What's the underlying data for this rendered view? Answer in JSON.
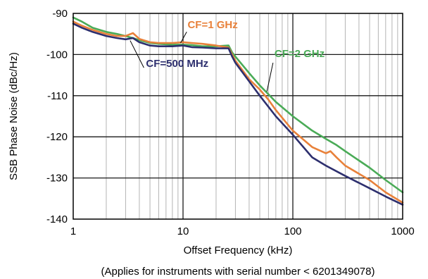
{
  "chart_data": {
    "type": "line",
    "title": "",
    "xlabel": "Offset Frequency (kHz)",
    "ylabel": "SSB Phase Noise (dBc/Hz)",
    "xscale": "log",
    "xlim": [
      1,
      1000
    ],
    "ylim": [
      -140,
      -90
    ],
    "grid": true,
    "x_ticks": [
      "1",
      "10",
      "100",
      "1000"
    ],
    "y_ticks": [
      "-90",
      "-100",
      "-110",
      "-120",
      "-130",
      "-140"
    ],
    "note": "(Applies for instruments with serial number < 6201349078)",
    "series": [
      {
        "name": "CF=500 MHz",
        "color": "#2d2f6e",
        "x": [
          1,
          1.2,
          1.5,
          2,
          2.5,
          3,
          3.5,
          4,
          5,
          6,
          7,
          8,
          10,
          12,
          15,
          20,
          26,
          28,
          30,
          40,
          50,
          70,
          100,
          150,
          200,
          300,
          500,
          700,
          1000
        ],
        "y": [
          -92.5,
          -93.5,
          -94.5,
          -95.5,
          -96,
          -96.3,
          -96,
          -97,
          -97.8,
          -98,
          -98,
          -98,
          -97.8,
          -98.2,
          -98.3,
          -98.5,
          -98.5,
          -100.5,
          -102,
          -106.5,
          -110,
          -115,
          -119.5,
          -125,
          -127,
          -129.5,
          -132.5,
          -134.5,
          -136.5
        ]
      },
      {
        "name": "CF=1 GHz",
        "color": "#e8813a",
        "x": [
          1,
          1.2,
          1.5,
          2,
          2.5,
          3,
          3.5,
          4,
          5,
          6,
          7,
          8,
          10,
          12,
          15,
          20,
          26,
          28,
          30,
          40,
          50,
          60,
          70,
          100,
          150,
          200,
          220,
          250,
          300,
          500,
          700,
          1000
        ],
        "y": [
          -92,
          -93,
          -94,
          -95,
          -95.5,
          -95.5,
          -94.8,
          -96.2,
          -97,
          -97.2,
          -97.2,
          -97.2,
          -97,
          -97.2,
          -97.4,
          -97.8,
          -98.3,
          -100,
          -101.5,
          -106,
          -108.5,
          -111,
          -113.5,
          -118.5,
          -122.5,
          -124,
          -123.5,
          -125,
          -127,
          -130.5,
          -133.5,
          -136
        ]
      },
      {
        "name": "CF=2 GHz",
        "color": "#4aab57",
        "x": [
          1,
          1.2,
          1.5,
          2,
          2.5,
          3,
          3.5,
          4,
          5,
          6,
          8,
          10,
          12,
          15,
          20,
          26,
          28,
          30,
          40,
          50,
          70,
          100,
          150,
          200,
          250,
          300,
          500,
          700,
          1000
        ],
        "y": [
          -91,
          -92,
          -93.5,
          -94.5,
          -95,
          -95.5,
          -96,
          -96.5,
          -97.2,
          -97.4,
          -97.6,
          -97.6,
          -97.7,
          -98,
          -98,
          -97.8,
          -99.5,
          -100.5,
          -104.5,
          -107.5,
          -111.5,
          -115,
          -118.5,
          -120.5,
          -122,
          -123.5,
          -127.5,
          -130.5,
          -133.5
        ]
      }
    ]
  }
}
